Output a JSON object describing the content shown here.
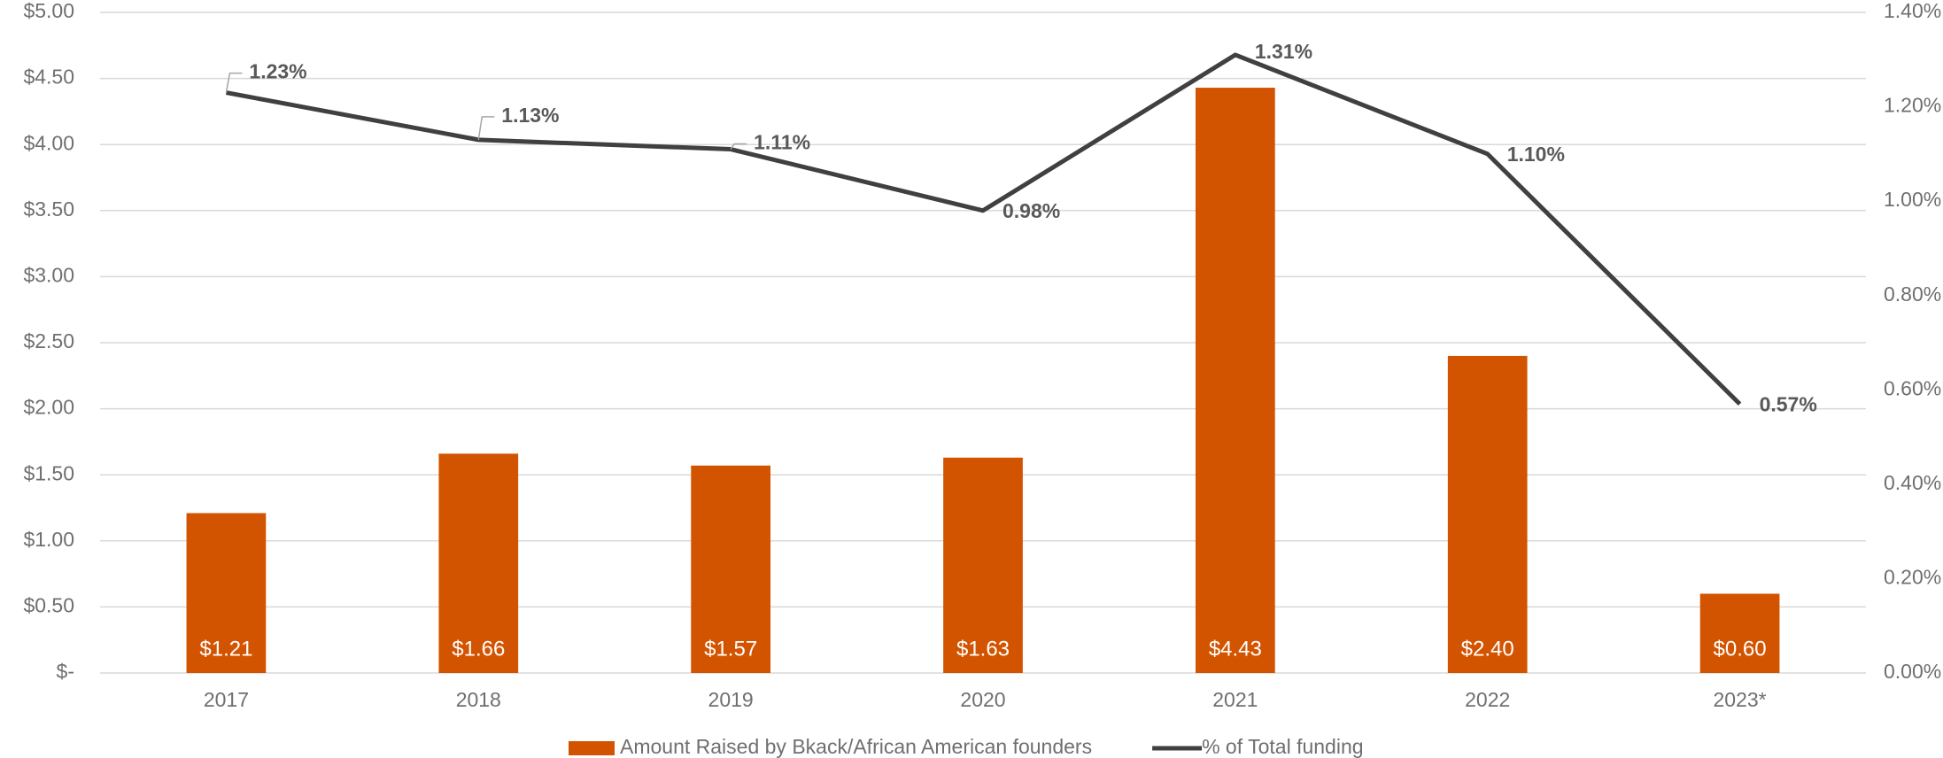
{
  "chart_data": {
    "type": "combo",
    "categories": [
      "2017",
      "2018",
      "2019",
      "2020",
      "2021",
      "2022",
      "2023*"
    ],
    "series": [
      {
        "name": "Amount Raised by Bkack/African American founders",
        "type": "bar",
        "color": "#d35400",
        "values": [
          1.21,
          1.66,
          1.57,
          1.63,
          4.43,
          2.4,
          0.6
        ],
        "value_labels": [
          "$1.21",
          "$1.66",
          "$1.57",
          "$1.63",
          "$4.43",
          "$2.40",
          "$0.60"
        ]
      },
      {
        "name": "% of Total funding",
        "type": "line",
        "color": "#404040",
        "axis": "y2",
        "values": [
          1.23,
          1.13,
          1.11,
          0.98,
          1.31,
          1.1,
          0.57
        ],
        "value_labels": [
          "1.23%",
          "1.13%",
          "1.11%",
          "0.98%",
          "1.31%",
          "1.10%",
          "0.57%"
        ]
      }
    ],
    "ylim": [
      0,
      5
    ],
    "yticks": [
      {
        "value": 0,
        "label": "$-"
      },
      {
        "value": 0.5,
        "label": "$0.50"
      },
      {
        "value": 1,
        "label": "$1.00"
      },
      {
        "value": 1.5,
        "label": "$1.50"
      },
      {
        "value": 2,
        "label": "$2.00"
      },
      {
        "value": 2.5,
        "label": "$2.50"
      },
      {
        "value": 3,
        "label": "$3.00"
      },
      {
        "value": 3.5,
        "label": "$3.50"
      },
      {
        "value": 4,
        "label": "$4.00"
      },
      {
        "value": 4.5,
        "label": "$4.50"
      },
      {
        "value": 5,
        "label": "$5.00"
      }
    ],
    "y2lim": [
      0,
      1.4
    ],
    "y2ticks": [
      {
        "value": 0,
        "label": "0.00%"
      },
      {
        "value": 0.2,
        "label": "0.20%"
      },
      {
        "value": 0.4,
        "label": "0.40%"
      },
      {
        "value": 0.6,
        "label": "0.60%"
      },
      {
        "value": 0.8,
        "label": "0.80%"
      },
      {
        "value": 1.0,
        "label": "1.00%"
      },
      {
        "value": 1.2,
        "label": "1.20%"
      },
      {
        "value": 1.4,
        "label": "1.40%"
      }
    ],
    "grid": true,
    "legend": "bottom"
  }
}
